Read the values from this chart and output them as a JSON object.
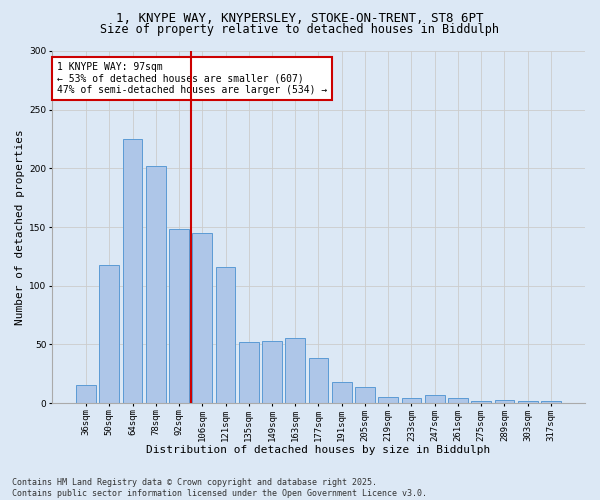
{
  "title_line1": "1, KNYPE WAY, KNYPERSLEY, STOKE-ON-TRENT, ST8 6PT",
  "title_line2": "Size of property relative to detached houses in Biddulph",
  "xlabel": "Distribution of detached houses by size in Biddulph",
  "ylabel": "Number of detached properties",
  "categories": [
    "36sqm",
    "50sqm",
    "64sqm",
    "78sqm",
    "92sqm",
    "106sqm",
    "121sqm",
    "135sqm",
    "149sqm",
    "163sqm",
    "177sqm",
    "191sqm",
    "205sqm",
    "219sqm",
    "233sqm",
    "247sqm",
    "261sqm",
    "275sqm",
    "289sqm",
    "303sqm",
    "317sqm"
  ],
  "values": [
    15,
    118,
    225,
    202,
    148,
    145,
    116,
    52,
    53,
    55,
    38,
    18,
    14,
    5,
    4,
    7,
    4,
    2,
    3,
    2,
    2
  ],
  "bar_color": "#aec6e8",
  "bar_edge_color": "#5b9bd5",
  "vline_x": 4.5,
  "vline_color": "#cc0000",
  "annotation_text": "1 KNYPE WAY: 97sqm\n← 53% of detached houses are smaller (607)\n47% of semi-detached houses are larger (534) →",
  "annotation_box_color": "#ffffff",
  "annotation_box_edge_color": "#cc0000",
  "ylim": [
    0,
    300
  ],
  "yticks": [
    0,
    50,
    100,
    150,
    200,
    250,
    300
  ],
  "grid_color": "#cccccc",
  "bg_color": "#dce8f5",
  "footer_line1": "Contains HM Land Registry data © Crown copyright and database right 2025.",
  "footer_line2": "Contains public sector information licensed under the Open Government Licence v3.0.",
  "title_fontsize": 9,
  "subtitle_fontsize": 8.5,
  "axis_label_fontsize": 8,
  "tick_fontsize": 6.5,
  "annotation_fontsize": 7,
  "footer_fontsize": 6
}
